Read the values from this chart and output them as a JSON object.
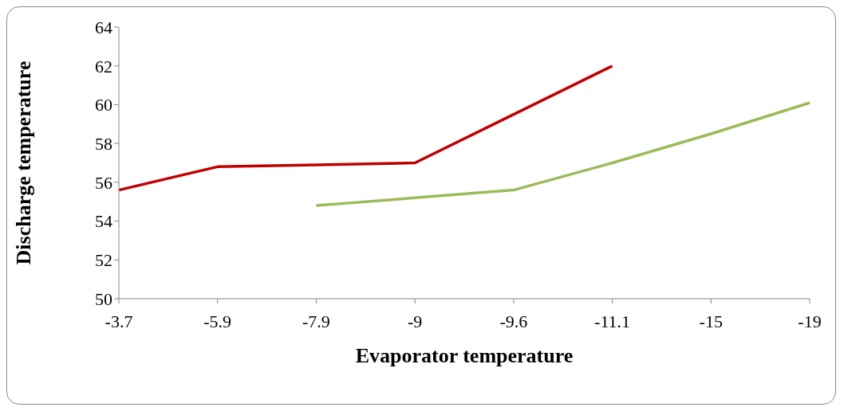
{
  "chart_data": {
    "type": "line",
    "xlabel": "Evaporator temperature",
    "ylabel": "Discharge temperature",
    "categories": [
      "-3.7",
      "-5.9",
      "-7.9",
      "-9",
      "-9.6",
      "-11.1",
      "-15",
      "-19"
    ],
    "series": [
      {
        "color": "#c00000",
        "values": [
          55.6,
          56.8,
          56.9,
          57.0,
          59.5,
          62.0,
          null,
          null
        ]
      },
      {
        "color": "#9bbb59",
        "values": [
          null,
          null,
          54.8,
          55.2,
          55.6,
          57.0,
          58.5,
          60.1
        ]
      }
    ],
    "ylim": [
      50,
      64
    ],
    "yticks": [
      50,
      52,
      54,
      56,
      58,
      60,
      62,
      64
    ],
    "grid": false,
    "legend": false,
    "marker": "none"
  }
}
